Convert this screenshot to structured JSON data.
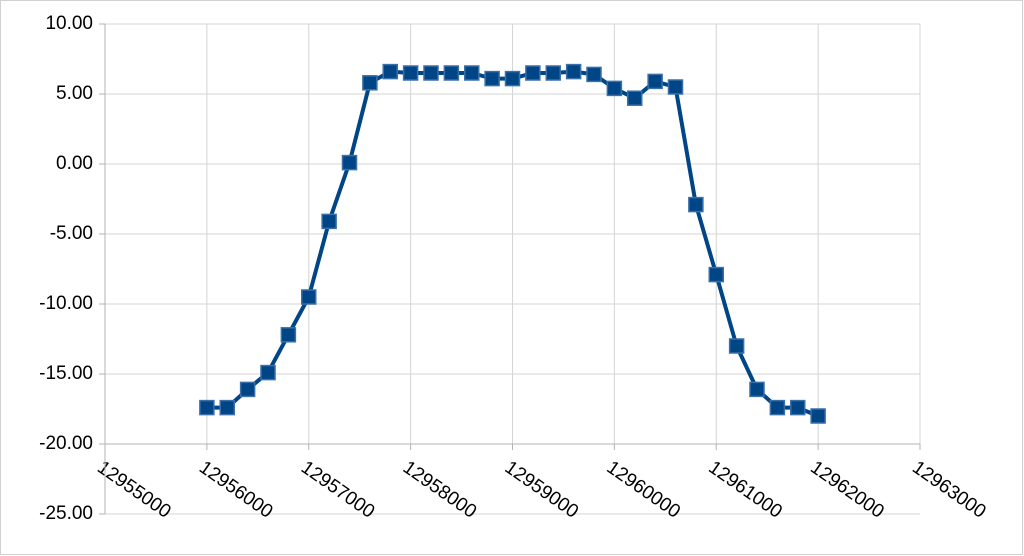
{
  "chart_data": {
    "type": "line",
    "x": [
      12956000,
      12956200,
      12956400,
      12956600,
      12956800,
      12957000,
      12957200,
      12957400,
      12957600,
      12957800,
      12958000,
      12958200,
      12958400,
      12958600,
      12958800,
      12959000,
      12959200,
      12959400,
      12959600,
      12959800,
      12960000,
      12960200,
      12960400,
      12960600,
      12960800,
      12961000,
      12961200,
      12961400,
      12961600,
      12961800,
      12962000
    ],
    "series": [
      {
        "color": "#004586",
        "values": [
          -17.4,
          -17.4,
          -16.1,
          -14.9,
          -12.2,
          -9.5,
          -4.1,
          0.1,
          5.8,
          6.6,
          6.5,
          6.5,
          6.5,
          6.5,
          6.1,
          6.1,
          6.5,
          6.5,
          6.6,
          6.4,
          5.4,
          4.7,
          5.9,
          5.5,
          -2.9,
          -7.9,
          -13.0,
          -16.1,
          -17.4,
          -17.4,
          -18.0
        ]
      }
    ],
    "xlim": [
      12955000,
      12963000
    ],
    "xticks": [
      12955000,
      12956000,
      12957000,
      12958000,
      12959000,
      12960000,
      12961000,
      12962000,
      12963000
    ],
    "ylim": [
      -25,
      10
    ],
    "yticks": [
      {
        "value": -25,
        "label": "-25.00"
      },
      {
        "value": -20,
        "label": "-20.00"
      },
      {
        "value": -15,
        "label": "-15.00"
      },
      {
        "value": -10,
        "label": "-10.00"
      },
      {
        "value": -5,
        "label": "-5.00"
      },
      {
        "value": 0,
        "label": "0.00"
      },
      {
        "value": 5,
        "label": "5.00"
      },
      {
        "value": 10,
        "label": "10.00"
      }
    ],
    "x_axis_at": -20,
    "grid": true,
    "marker": "square"
  }
}
